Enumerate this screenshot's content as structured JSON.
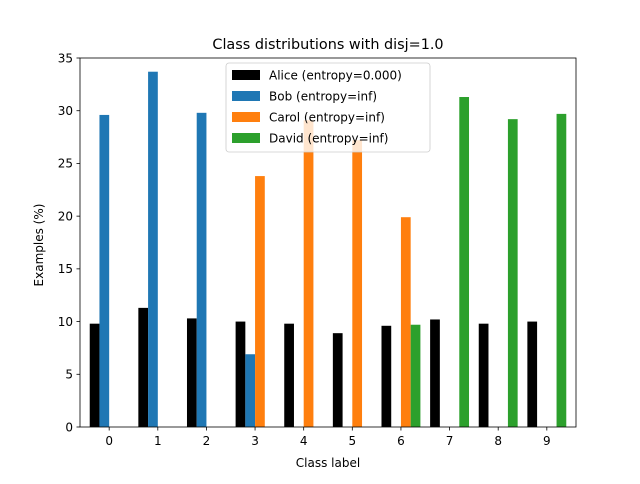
{
  "chart_data": {
    "type": "bar",
    "title": "Class distributions with disj=1.0",
    "xlabel": "Class label",
    "ylabel": "Examples (%)",
    "categories": [
      "0",
      "1",
      "2",
      "3",
      "4",
      "5",
      "6",
      "7",
      "8",
      "9"
    ],
    "ylim": [
      0,
      35
    ],
    "yticks": [
      "0",
      "5",
      "10",
      "15",
      "20",
      "25",
      "30",
      "35"
    ],
    "legend_position": "top-center",
    "grid": false,
    "series": [
      {
        "name": "Alice (entropy=0.000)",
        "color": "#000000",
        "values": [
          9.8,
          11.3,
          10.3,
          10.0,
          9.8,
          8.9,
          9.6,
          10.2,
          9.8,
          10.0
        ]
      },
      {
        "name": "Bob (entropy=inf)",
        "color": "#1f77b4",
        "values": [
          29.6,
          33.7,
          29.8,
          6.9,
          0,
          0,
          0,
          0,
          0,
          0
        ]
      },
      {
        "name": "Carol (entropy=inf)",
        "color": "#ff7f0e",
        "values": [
          0,
          0,
          0,
          23.8,
          29.1,
          27.2,
          19.9,
          0,
          0,
          0
        ]
      },
      {
        "name": "David (entropy=inf)",
        "color": "#2ca02c",
        "values": [
          0,
          0,
          0,
          0,
          0,
          0,
          9.7,
          31.3,
          29.2,
          29.7
        ]
      }
    ]
  }
}
